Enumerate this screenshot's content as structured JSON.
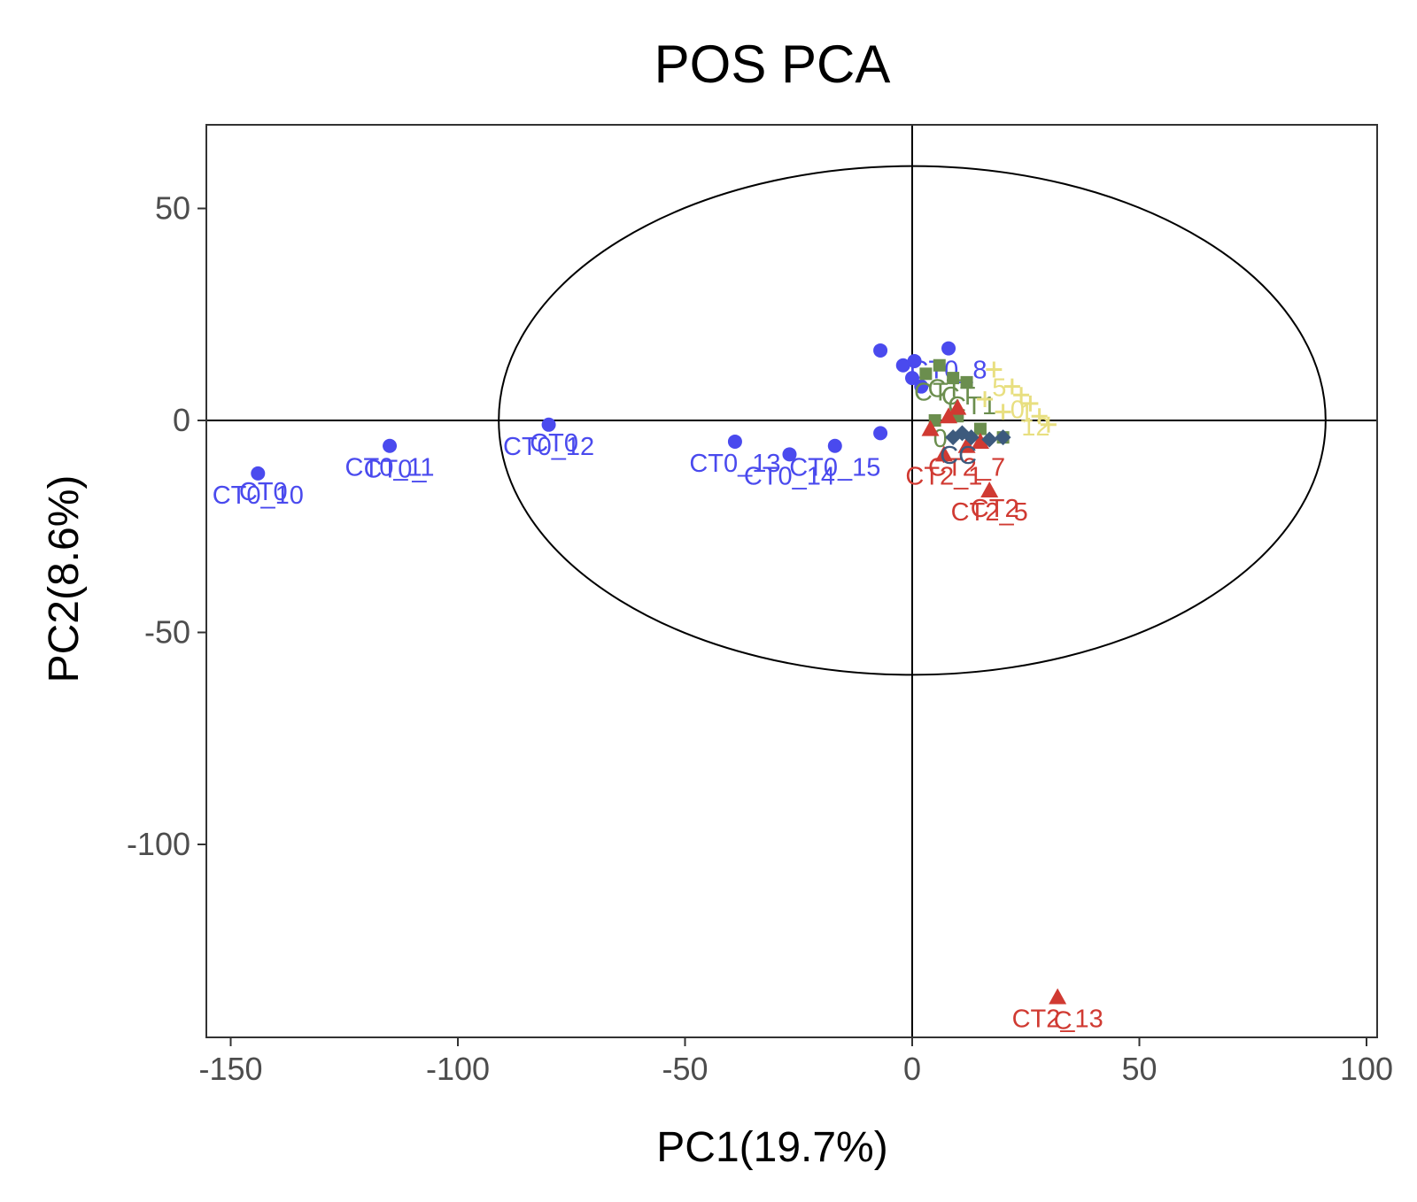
{
  "chart_data": {
    "type": "scatter",
    "title": "POS PCA",
    "xlabel": "PC1(19.7%)",
    "ylabel": "PC2(8.6%)",
    "xlim": [
      -155,
      103
    ],
    "ylim": [
      -145,
      70
    ],
    "x_ticks": [
      -150,
      -100,
      -50,
      0,
      50,
      100
    ],
    "x_tick_labels": [
      "-150",
      "-100",
      "-50",
      "0",
      "50",
      "100"
    ],
    "y_ticks": [
      50,
      0,
      -50,
      -100
    ],
    "y_tick_labels": [
      "50",
      "0",
      "-50",
      "-100"
    ],
    "grid": false,
    "legend": "none",
    "reference_lines": {
      "x": 0,
      "y": 0
    },
    "ellipse": {
      "center": [
        0,
        0
      ],
      "rx": 91,
      "ry": 60
    },
    "series": [
      {
        "color": "#4a4aee",
        "marker": "circle",
        "points": [
          {
            "x": -144,
            "y": -12.5,
            "label": "CT0_10"
          },
          {
            "x": -115,
            "y": -6,
            "label": "CT0_11"
          },
          {
            "x": -80,
            "y": -1,
            "label": "CT0_12"
          },
          {
            "x": -39,
            "y": -5,
            "label": "CT0_13"
          },
          {
            "x": -27,
            "y": -8,
            "label": "CT0_14"
          },
          {
            "x": -17,
            "y": -6,
            "label": "CT0_15"
          },
          {
            "x": -7,
            "y": -3,
            "label": ""
          },
          {
            "x": -7,
            "y": 16.5,
            "label": ""
          },
          {
            "x": -2,
            "y": 13,
            "label": ""
          },
          {
            "x": 0.5,
            "y": 14,
            "label": ""
          },
          {
            "x": 8,
            "y": 17,
            "label": "CT0_8"
          },
          {
            "x": 0,
            "y": 10,
            "label": ""
          },
          {
            "x": 2,
            "y": 8,
            "label": ""
          }
        ],
        "extra_labels": [
          "CT0",
          "CT0_",
          "CT0"
        ]
      },
      {
        "color": "#6b8e4e",
        "marker": "square",
        "points": [
          {
            "x": 3,
            "y": 11,
            "label": ""
          },
          {
            "x": 6,
            "y": 13,
            "label": ""
          },
          {
            "x": 9,
            "y": 10,
            "label": ""
          },
          {
            "x": 12,
            "y": 9,
            "label": ""
          },
          {
            "x": 5,
            "y": 0,
            "label": ""
          },
          {
            "x": 10,
            "y": 1,
            "label": ""
          },
          {
            "x": 15,
            "y": -2,
            "label": ""
          },
          {
            "x": 20,
            "y": -4,
            "label": ""
          }
        ],
        "extra_labels": [
          "CT",
          "CT",
          "CT",
          "CT1",
          "0"
        ]
      },
      {
        "color": "#e8df80",
        "marker": "plus",
        "points": [
          {
            "x": 18,
            "y": 12,
            "label": ""
          },
          {
            "x": 22,
            "y": 8,
            "label": ""
          },
          {
            "x": 24,
            "y": 6,
            "label": ""
          },
          {
            "x": 26,
            "y": 4,
            "label": ""
          },
          {
            "x": 20,
            "y": 2,
            "label": ""
          },
          {
            "x": 28,
            "y": 1,
            "label": ""
          },
          {
            "x": 30,
            "y": -1,
            "label": ""
          },
          {
            "x": 16,
            "y": 5,
            "label": ""
          }
        ],
        "extra_labels": [
          "5",
          "0",
          "1",
          "12"
        ]
      },
      {
        "color": "#d03a32",
        "marker": "triangle",
        "points": [
          {
            "x": 17,
            "y": -16.5,
            "label": "CT2_5"
          },
          {
            "x": 32,
            "y": -136,
            "label": "CT2_13"
          },
          {
            "x": 7,
            "y": -8,
            "label": "CT2_1"
          },
          {
            "x": 12,
            "y": -6,
            "label": "CT2_7"
          },
          {
            "x": 10,
            "y": 3,
            "label": ""
          },
          {
            "x": 4,
            "y": -2,
            "label": ""
          },
          {
            "x": 15,
            "y": -5,
            "label": ""
          },
          {
            "x": 8,
            "y": 1,
            "label": ""
          }
        ],
        "extra_labels": [
          "CT2",
          "C"
        ]
      },
      {
        "color": "#3d5a7d",
        "marker": "diamond",
        "points": [
          {
            "x": 9,
            "y": -4,
            "label": ""
          },
          {
            "x": 13,
            "y": -4,
            "label": ""
          },
          {
            "x": 17,
            "y": -4.5,
            "label": ""
          },
          {
            "x": 20,
            "y": -4,
            "label": ""
          },
          {
            "x": 11,
            "y": -3,
            "label": ""
          }
        ],
        "extra_labels": [
          "CC"
        ]
      }
    ]
  }
}
